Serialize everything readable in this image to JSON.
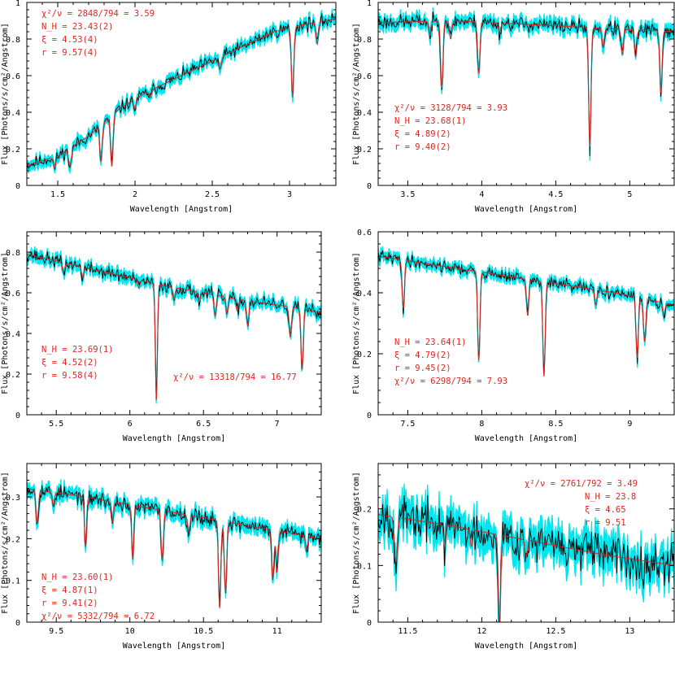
{
  "colors": {
    "model": "#e0261f",
    "errorbar": "#00e5ee",
    "data": "#000000",
    "annotation": "#e0261f",
    "frame": "#000000"
  },
  "chart_data": [
    {
      "type": "line",
      "panel": "top-left",
      "xlim": [
        1.3,
        3.3
      ],
      "ylim": [
        0,
        1.0
      ],
      "xticks": [
        "1.5",
        "2",
        "2.5",
        "3"
      ],
      "xtick_values": [
        1.5,
        2.0,
        2.5,
        3.0
      ],
      "yticks": [
        "0",
        "0.2",
        "0.4",
        "0.6",
        "0.8",
        "1"
      ],
      "ytick_values": [
        0,
        0.2,
        0.4,
        0.6,
        0.8,
        1.0
      ],
      "xlabel": "Wavelength [Angstrom]",
      "ylabel": "Flux [Photons/s/cm²/Angstrom]",
      "continuum": [
        [
          1.3,
          0.11
        ],
        [
          1.5,
          0.16
        ],
        [
          1.7,
          0.27
        ],
        [
          1.9,
          0.42
        ],
        [
          2.1,
          0.52
        ],
        [
          2.3,
          0.6
        ],
        [
          2.5,
          0.68
        ],
        [
          2.7,
          0.76
        ],
        [
          2.9,
          0.84
        ],
        [
          3.1,
          0.88
        ],
        [
          3.3,
          0.91
        ]
      ],
      "lines": [
        {
          "x": 1.48,
          "depth": 0.06,
          "w": 0.008
        },
        {
          "x": 1.58,
          "depth": 0.1,
          "w": 0.01
        },
        {
          "x": 1.78,
          "depth": 0.2,
          "w": 0.008
        },
        {
          "x": 1.85,
          "depth": 0.28,
          "w": 0.008
        },
        {
          "x": 2.0,
          "depth": 0.05,
          "w": 0.008
        },
        {
          "x": 2.1,
          "depth": 0.04,
          "w": 0.008
        },
        {
          "x": 2.55,
          "depth": 0.06,
          "w": 0.01
        },
        {
          "x": 3.02,
          "depth": 0.38,
          "w": 0.008
        },
        {
          "x": 3.18,
          "depth": 0.12,
          "w": 0.008
        }
      ],
      "noise": 0.022,
      "seed": 11,
      "annotations": {
        "chi": "χ²/ν = 2848/794 = 3.59",
        "nh": "N_H = 23.43(2)",
        "xi": "ξ = 4.53(4)",
        "r": "r = 9.57(4)"
      }
    },
    {
      "type": "line",
      "panel": "top-right",
      "xlim": [
        3.3,
        5.3
      ],
      "ylim": [
        0,
        1.0
      ],
      "xticks": [
        "3.5",
        "4",
        "4.5",
        "5"
      ],
      "xtick_values": [
        3.5,
        4.0,
        4.5,
        5.0
      ],
      "yticks": [
        "0",
        "0.2",
        "0.4",
        "0.6",
        "0.8",
        "1"
      ],
      "ytick_values": [
        0,
        0.2,
        0.4,
        0.6,
        0.8,
        1.0
      ],
      "xlabel": "Wavelength [Angstrom]",
      "ylabel": "Flux [Photons/s/cm²/Angstrom]",
      "continuum": [
        [
          3.3,
          0.89
        ],
        [
          3.8,
          0.9
        ],
        [
          4.3,
          0.88
        ],
        [
          4.8,
          0.86
        ],
        [
          5.3,
          0.84
        ]
      ],
      "lines": [
        {
          "x": 3.65,
          "depth": 0.08,
          "w": 0.008
        },
        {
          "x": 3.73,
          "depth": 0.37,
          "w": 0.008
        },
        {
          "x": 3.79,
          "depth": 0.1,
          "w": 0.008
        },
        {
          "x": 3.98,
          "depth": 0.28,
          "w": 0.008
        },
        {
          "x": 4.12,
          "depth": 0.05,
          "w": 0.008
        },
        {
          "x": 4.73,
          "depth": 0.66,
          "w": 0.008
        },
        {
          "x": 4.82,
          "depth": 0.1,
          "w": 0.008
        },
        {
          "x": 4.95,
          "depth": 0.14,
          "w": 0.008
        },
        {
          "x": 5.04,
          "depth": 0.15,
          "w": 0.008
        },
        {
          "x": 5.21,
          "depth": 0.34,
          "w": 0.008
        }
      ],
      "noise": 0.025,
      "seed": 23,
      "annotations": {
        "chi": "χ²/ν = 3128/794 = 3.93",
        "nh": "N_H = 23.68(1)",
        "xi": "ξ = 4.89(2)",
        "r": "r = 9.40(2)"
      }
    },
    {
      "type": "line",
      "panel": "middle-left",
      "xlim": [
        5.3,
        7.3
      ],
      "ylim": [
        0,
        0.9
      ],
      "xticks": [
        "5.5",
        "6",
        "6.5",
        "7"
      ],
      "xtick_values": [
        5.5,
        6.0,
        6.5,
        7.0
      ],
      "yticks": [
        "0",
        "0.2",
        "0.4",
        "0.6",
        "0.8"
      ],
      "ytick_values": [
        0,
        0.2,
        0.4,
        0.6,
        0.8
      ],
      "xlabel": "Wavelength [Angstrom]",
      "ylabel": "Flux [Photons/s/cm²/Angstrom]",
      "continuum": [
        [
          5.3,
          0.79
        ],
        [
          5.6,
          0.74
        ],
        [
          5.9,
          0.69
        ],
        [
          6.2,
          0.64
        ],
        [
          6.5,
          0.6
        ],
        [
          6.8,
          0.56
        ],
        [
          7.1,
          0.53
        ],
        [
          7.3,
          0.5
        ]
      ],
      "lines": [
        {
          "x": 5.55,
          "depth": 0.05,
          "w": 0.008
        },
        {
          "x": 5.68,
          "depth": 0.05,
          "w": 0.008
        },
        {
          "x": 6.06,
          "depth": 0.04,
          "w": 0.008
        },
        {
          "x": 6.18,
          "depth": 0.57,
          "w": 0.007
        },
        {
          "x": 6.3,
          "depth": 0.06,
          "w": 0.008
        },
        {
          "x": 6.47,
          "depth": 0.05,
          "w": 0.008
        },
        {
          "x": 6.58,
          "depth": 0.1,
          "w": 0.008
        },
        {
          "x": 6.66,
          "depth": 0.08,
          "w": 0.008
        },
        {
          "x": 6.73,
          "depth": 0.06,
          "w": 0.008
        },
        {
          "x": 6.8,
          "depth": 0.12,
          "w": 0.008
        },
        {
          "x": 7.09,
          "depth": 0.15,
          "w": 0.008
        },
        {
          "x": 7.17,
          "depth": 0.3,
          "w": 0.008
        }
      ],
      "noise": 0.02,
      "seed": 37,
      "annotations": {
        "chi": "χ²/ν = 13318/794 = 16.77",
        "nh": "N_H = 23.69(1)",
        "xi": "ξ = 4.52(2)",
        "r": "r = 9.58(4)"
      }
    },
    {
      "type": "line",
      "panel": "middle-right",
      "xlim": [
        7.3,
        9.3
      ],
      "ylim": [
        0,
        0.6
      ],
      "xticks": [
        "7.5",
        "8",
        "8.5",
        "9"
      ],
      "xtick_values": [
        7.5,
        8.0,
        8.5,
        9.0
      ],
      "yticks": [
        "0",
        "0.2",
        "0.4",
        "0.6"
      ],
      "ytick_values": [
        0,
        0.2,
        0.4,
        0.6
      ],
      "xlabel": "Wavelength [Angstrom]",
      "ylabel": "Flux [Photons/s/cm²/Angstrom]",
      "continuum": [
        [
          7.3,
          0.52
        ],
        [
          7.7,
          0.49
        ],
        [
          8.1,
          0.46
        ],
        [
          8.5,
          0.43
        ],
        [
          8.9,
          0.4
        ],
        [
          9.3,
          0.36
        ]
      ],
      "lines": [
        {
          "x": 7.47,
          "depth": 0.16,
          "w": 0.008
        },
        {
          "x": 7.98,
          "depth": 0.29,
          "w": 0.008
        },
        {
          "x": 8.31,
          "depth": 0.12,
          "w": 0.008
        },
        {
          "x": 8.42,
          "depth": 0.31,
          "w": 0.008
        },
        {
          "x": 8.77,
          "depth": 0.05,
          "w": 0.008
        },
        {
          "x": 9.05,
          "depth": 0.2,
          "w": 0.008
        },
        {
          "x": 9.1,
          "depth": 0.14,
          "w": 0.008
        },
        {
          "x": 9.23,
          "depth": 0.04,
          "w": 0.008
        }
      ],
      "noise": 0.012,
      "seed": 41,
      "annotations": {
        "chi": "χ²/ν = 6298/794 = 7.93",
        "nh": "N_H = 23.64(1)",
        "xi": "ξ = 4.79(2)",
        "r": "r = 9.45(2)"
      }
    },
    {
      "type": "line",
      "panel": "bottom-left",
      "xlim": [
        9.3,
        11.3
      ],
      "ylim": [
        0,
        0.38
      ],
      "xticks": [
        "9.5",
        "10",
        "10.5",
        "11"
      ],
      "xtick_values": [
        9.5,
        10.0,
        10.5,
        11.0
      ],
      "yticks": [
        "0",
        "0.1",
        "0.2",
        "0.3"
      ],
      "ytick_values": [
        0,
        0.1,
        0.2,
        0.3
      ],
      "xlabel": "Wavelength [Angstrom]",
      "ylabel": "Flux [Photons/s/cm²/Angstrom]",
      "continuum": [
        [
          9.3,
          0.32
        ],
        [
          9.7,
          0.3
        ],
        [
          10.1,
          0.275
        ],
        [
          10.5,
          0.25
        ],
        [
          10.9,
          0.225
        ],
        [
          11.3,
          0.2
        ]
      ],
      "lines": [
        {
          "x": 9.37,
          "depth": 0.08,
          "w": 0.008
        },
        {
          "x": 9.48,
          "depth": 0.03,
          "w": 0.008
        },
        {
          "x": 9.7,
          "depth": 0.12,
          "w": 0.008
        },
        {
          "x": 9.88,
          "depth": 0.05,
          "w": 0.008
        },
        {
          "x": 10.02,
          "depth": 0.13,
          "w": 0.008
        },
        {
          "x": 10.22,
          "depth": 0.12,
          "w": 0.008
        },
        {
          "x": 10.4,
          "depth": 0.04,
          "w": 0.008
        },
        {
          "x": 10.61,
          "depth": 0.21,
          "w": 0.008
        },
        {
          "x": 10.65,
          "depth": 0.17,
          "w": 0.008
        },
        {
          "x": 10.97,
          "depth": 0.12,
          "w": 0.008
        },
        {
          "x": 11.0,
          "depth": 0.1,
          "w": 0.008
        },
        {
          "x": 11.2,
          "depth": 0.03,
          "w": 0.008
        }
      ],
      "noise": 0.012,
      "seed": 53,
      "annotations": {
        "chi": "χ²/ν = 5332/794 = 6.72",
        "nh": "N_H = 23.60(1)",
        "xi": "ξ = 4.87(1)",
        "r": "r = 9.41(2)"
      }
    },
    {
      "type": "line",
      "panel": "bottom-right",
      "xlim": [
        11.3,
        13.3
      ],
      "ylim": [
        0,
        0.28
      ],
      "xticks": [
        "11.5",
        "12",
        "12.5",
        "13"
      ],
      "xtick_values": [
        11.5,
        12.0,
        12.5,
        13.0
      ],
      "yticks": [
        "0",
        "0.1",
        "0.2"
      ],
      "ytick_values": [
        0,
        0.1,
        0.2
      ],
      "xlabel": "Wavelength [Angstrom]",
      "ylabel": "Flux [Photons/s/cm²/Angstrom]",
      "continuum": [
        [
          11.3,
          0.19
        ],
        [
          11.8,
          0.17
        ],
        [
          12.3,
          0.145
        ],
        [
          12.8,
          0.12
        ],
        [
          13.3,
          0.1
        ]
      ],
      "lines": [
        {
          "x": 11.42,
          "depth": 0.08,
          "w": 0.01
        },
        {
          "x": 11.75,
          "depth": 0.04,
          "w": 0.008
        },
        {
          "x": 11.93,
          "depth": 0.03,
          "w": 0.008
        },
        {
          "x": 12.12,
          "depth": 0.16,
          "w": 0.008
        },
        {
          "x": 12.3,
          "depth": 0.03,
          "w": 0.008
        }
      ],
      "noise": 0.022,
      "seed": 67,
      "annotations": {
        "chi": "χ²/ν = 2761/792 = 3.49",
        "nh": "N_H = 23.8",
        "xi": "ξ = 4.65",
        "r": "r = 9.51"
      }
    }
  ]
}
